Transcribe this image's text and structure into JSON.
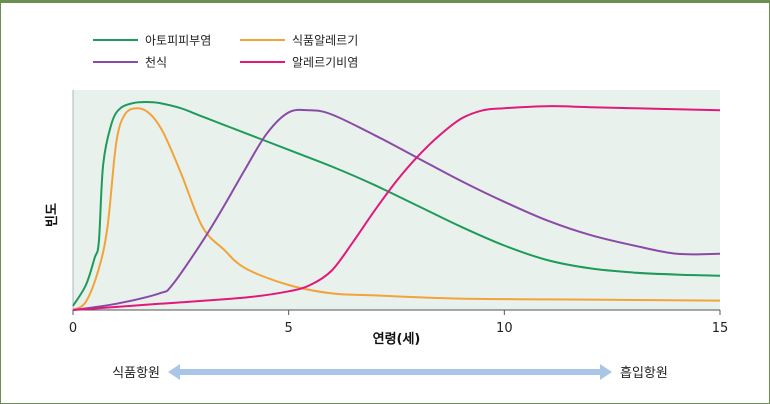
{
  "chart_data": {
    "type": "line",
    "xlabel": "연령(세)",
    "ylabel": "빈도",
    "xlim": [
      0,
      15
    ],
    "ylim": [
      0,
      100
    ],
    "xticks": [
      "0",
      "5",
      "10",
      "15"
    ],
    "legend_position": "top-left",
    "series": [
      {
        "name": "아토피피부염",
        "color": "#1e9a5a",
        "x": [
          0,
          0.3,
          0.5,
          0.6,
          0.7,
          0.9,
          1.1,
          1.4,
          1.7,
          2.0,
          2.5,
          3.0,
          4.0,
          5.0,
          6.0,
          7.0,
          8.0,
          9.0,
          10.0,
          11.0,
          12.0,
          13.0,
          14.0,
          15.0
        ],
        "values": [
          2,
          12,
          25,
          33,
          70,
          90,
          97,
          99.5,
          100,
          99.5,
          97,
          93,
          85,
          77,
          69,
          60,
          50,
          40,
          31,
          24,
          20,
          18,
          17,
          16.5
        ]
      },
      {
        "name": "식품알레르기",
        "color": "#f2a33a",
        "x": [
          0,
          0.3,
          0.6,
          0.8,
          1.0,
          1.2,
          1.5,
          1.8,
          2.1,
          2.5,
          3.0,
          3.5,
          4.0,
          5.0,
          6.0,
          7.0,
          9.0,
          12.0,
          15.0
        ],
        "values": [
          0,
          4,
          20,
          40,
          80,
          94,
          97,
          94,
          85,
          66,
          40,
          29,
          20,
          12,
          8,
          7,
          5.5,
          5,
          4.5
        ]
      },
      {
        "name": "천식",
        "color": "#8a4aa8",
        "x": [
          0,
          1.0,
          2.0,
          2.3,
          3.0,
          3.5,
          4.0,
          4.5,
          5.0,
          5.5,
          6.0,
          7.0,
          8.0,
          9.0,
          10.0,
          11.0,
          12.0,
          13.0,
          14.0,
          15.0
        ],
        "values": [
          0,
          3,
          8,
          12,
          33,
          50,
          68,
          85,
          95,
          96,
          94,
          84,
          73,
          62,
          52,
          43,
          36,
          31,
          27,
          27
        ]
      },
      {
        "name": "알레르기비염",
        "color": "#e0197b",
        "x": [
          0,
          2.0,
          4.0,
          5.0,
          5.5,
          6.0,
          6.5,
          7.0,
          7.5,
          8.0,
          8.5,
          9.0,
          9.5,
          10.0,
          11.0,
          12.0,
          13.0,
          14.0,
          15.0
        ],
        "values": [
          0,
          3,
          6,
          9,
          12,
          19,
          33,
          48,
          62,
          74,
          84,
          92,
          96,
          97,
          98,
          97.5,
          97,
          96.5,
          96
        ]
      }
    ]
  },
  "arrow": {
    "left_label": "식품항원",
    "right_label": "흡입항원",
    "color": "#a9c6e6"
  }
}
